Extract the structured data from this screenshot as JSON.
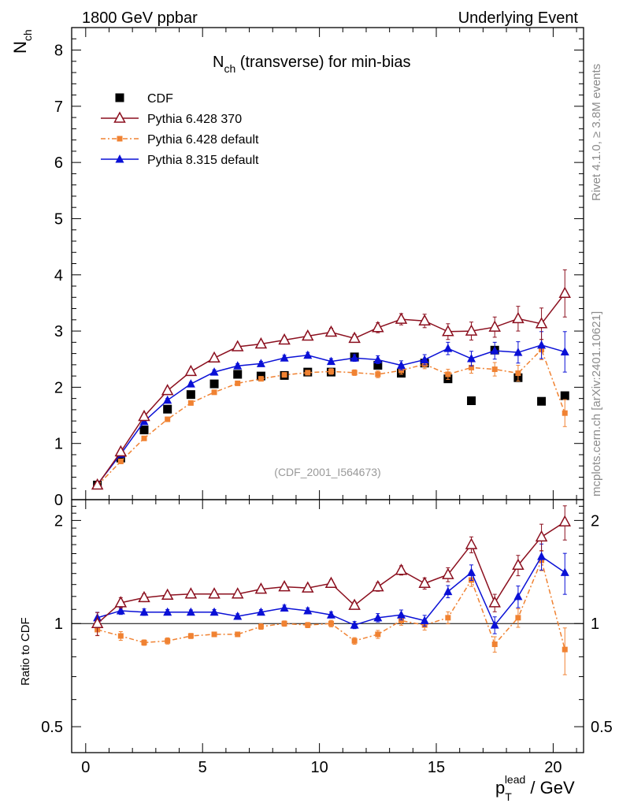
{
  "header": {
    "left": "1800 GeV ppbar",
    "right": "Underlying Event"
  },
  "side_texts": {
    "rivet": "Rivet 4.1.0, ≥ 3.8M events",
    "mcplots": "mcplots.cern.ch [arXiv:2401.10621]"
  },
  "chart_data": {
    "type": "scatter",
    "title_main": "N",
    "title_sub": "ch",
    "title_rest": " (transverse) for min-bias",
    "watermark": "(CDF_2001_I564673)",
    "ylabel_main": "N",
    "ylabel_sub": "ch",
    "xlabel_main": "p",
    "xlabel_sub": "T",
    "xlabel_sup": "lead",
    "xlabel_rest": " / GeV",
    "ratio_ylabel": "Ratio to CDF",
    "xlim": [
      -0.6,
      21.3
    ],
    "ylim": [
      0,
      8.4
    ],
    "ratio_ylim": [
      0.42,
      2.3
    ],
    "x_ticks": [
      0,
      5,
      10,
      15,
      20
    ],
    "y_ticks": [
      0,
      1,
      2,
      3,
      4,
      5,
      6,
      7,
      8
    ],
    "ratio_ticks": [
      0.5,
      1,
      2
    ],
    "x_tick_labels": [
      "0",
      "5",
      "10",
      "15",
      "20"
    ],
    "y_tick_labels": [
      "0",
      "1",
      "2",
      "3",
      "4",
      "5",
      "6",
      "7",
      "8"
    ],
    "ratio_tick_labels": [
      "0.5",
      "1",
      "2"
    ],
    "x": [
      0.5,
      1.5,
      2.5,
      3.5,
      4.5,
      5.5,
      6.5,
      7.5,
      8.5,
      9.5,
      10.5,
      11.5,
      12.5,
      13.5,
      14.5,
      15.5,
      16.5,
      17.5,
      18.5,
      19.5,
      20.5
    ],
    "series": [
      {
        "name": "CDF",
        "color": "#000000",
        "marker": "square",
        "values": [
          0.26,
          0.74,
          1.24,
          1.61,
          1.87,
          2.06,
          2.23,
          2.2,
          2.21,
          2.27,
          2.27,
          2.54,
          2.39,
          2.25,
          2.43,
          2.15,
          1.76,
          2.66,
          2.17,
          1.75,
          1.85
        ],
        "ratio": [
          1,
          1,
          1,
          1,
          1,
          1,
          1,
          1,
          1,
          1,
          1,
          1,
          1,
          1,
          1,
          1,
          1,
          1,
          1,
          1,
          1
        ],
        "err": [
          0,
          0,
          0,
          0,
          0,
          0,
          0,
          0,
          0,
          0,
          0,
          0,
          0,
          0,
          0,
          0,
          0,
          0,
          0,
          0,
          0
        ]
      },
      {
        "name": "Pythia 6.428 370",
        "color": "#8b0f1e",
        "marker": "triangle-open",
        "values": [
          0.26,
          0.85,
          1.48,
          1.94,
          2.28,
          2.52,
          2.72,
          2.77,
          2.84,
          2.91,
          2.98,
          2.87,
          3.06,
          3.21,
          3.18,
          2.99,
          3.0,
          3.07,
          3.22,
          3.13,
          3.67
        ],
        "ratio": [
          1.0,
          1.15,
          1.19,
          1.21,
          1.22,
          1.22,
          1.22,
          1.26,
          1.28,
          1.27,
          1.31,
          1.13,
          1.28,
          1.43,
          1.31,
          1.39,
          1.7,
          1.15,
          1.48,
          1.79,
          1.98
        ],
        "err": [
          0.02,
          0.03,
          0.04,
          0.04,
          0.04,
          0.05,
          0.05,
          0.05,
          0.06,
          0.06,
          0.07,
          0.07,
          0.09,
          0.1,
          0.12,
          0.14,
          0.16,
          0.18,
          0.22,
          0.28,
          0.42
        ]
      },
      {
        "name": "Pythia 6.428 default",
        "color": "#f08232",
        "marker": "square-small",
        "values": [
          0.25,
          0.68,
          1.09,
          1.43,
          1.72,
          1.91,
          2.07,
          2.15,
          2.22,
          2.26,
          2.28,
          2.26,
          2.23,
          2.3,
          2.41,
          2.23,
          2.35,
          2.32,
          2.25,
          2.67,
          1.54
        ],
        "ratio": [
          0.96,
          0.92,
          0.88,
          0.89,
          0.92,
          0.93,
          0.93,
          0.98,
          1.0,
          0.99,
          1.0,
          0.89,
          0.93,
          1.02,
          0.99,
          1.04,
          1.34,
          0.87,
          1.04,
          1.53,
          0.84
        ],
        "err": [
          0.01,
          0.02,
          0.02,
          0.03,
          0.03,
          0.03,
          0.03,
          0.04,
          0.04,
          0.04,
          0.05,
          0.05,
          0.06,
          0.07,
          0.08,
          0.09,
          0.1,
          0.12,
          0.14,
          0.18,
          0.24
        ]
      },
      {
        "name": "Pythia 8.315 default",
        "color": "#0a10d6",
        "marker": "triangle-filled",
        "values": [
          0.27,
          0.81,
          1.39,
          1.77,
          2.06,
          2.27,
          2.38,
          2.42,
          2.52,
          2.57,
          2.46,
          2.52,
          2.49,
          2.39,
          2.49,
          2.69,
          2.51,
          2.65,
          2.62,
          2.75,
          2.63
        ],
        "ratio": [
          1.04,
          1.09,
          1.08,
          1.08,
          1.08,
          1.08,
          1.05,
          1.08,
          1.11,
          1.09,
          1.06,
          0.99,
          1.04,
          1.06,
          1.02,
          1.24,
          1.41,
          0.99,
          1.2,
          1.57,
          1.41
        ],
        "err": [
          0.01,
          0.02,
          0.03,
          0.03,
          0.03,
          0.04,
          0.04,
          0.04,
          0.05,
          0.05,
          0.05,
          0.06,
          0.07,
          0.08,
          0.09,
          0.11,
          0.13,
          0.15,
          0.19,
          0.24,
          0.36
        ]
      }
    ]
  }
}
